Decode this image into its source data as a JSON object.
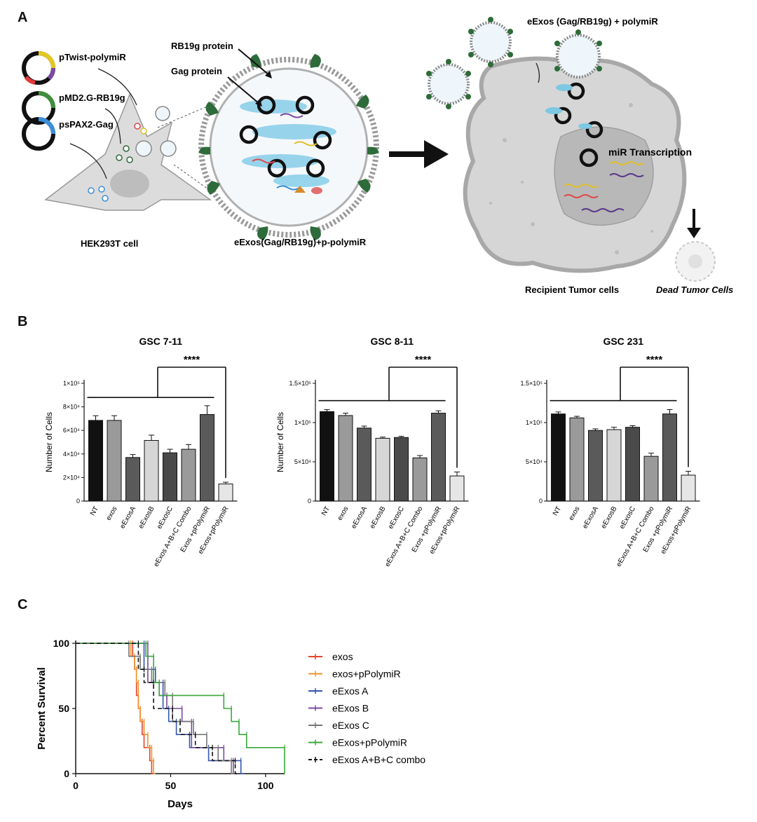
{
  "panels": {
    "a": "A",
    "b": "B",
    "c": "C"
  },
  "panelA": {
    "plasmids": [
      "pTwist-polymiR",
      "pMD2.G-RB19g",
      "psPAX2-Gag"
    ],
    "cell_label": "HEK293T cell",
    "rb19g_label": "RB19g protein",
    "gag_label": "Gag protein",
    "exo_label": "eExos(Gag/RB19g)+p-polymiR",
    "uptake_label": "eExos (Gag/RB19g) + polymiR",
    "transcription_label": "miR Transcription",
    "recipient_label": "Recipient Tumor cells",
    "dead_label": "Dead Tumor Cells",
    "colors": {
      "cell": "#dcdcdc",
      "tumor": "#cfcfcf",
      "nucleus": "#b5b5b5",
      "green": "#2e6b3a",
      "gag": "#7ec8e3"
    }
  },
  "chart_data": [
    {
      "type": "bar",
      "title": "GSC 7-11",
      "ylabel": "Number of Cells",
      "ylim": [
        0,
        100000
      ],
      "yticks": [
        0,
        20000,
        40000,
        60000,
        80000,
        100000
      ],
      "yticklabels": [
        "0",
        "2×10⁴",
        "4×10⁴",
        "6×10⁴",
        "8×10⁴",
        "1×10⁵"
      ],
      "categories": [
        "NT",
        "exos",
        "eExosA",
        "eExosB",
        "eExosC",
        "eExos A+B+C Combo",
        "Exos +pPolymiR",
        "eExos+pPolymiR"
      ],
      "values": [
        68500,
        68500,
        37000,
        51500,
        41000,
        44000,
        73500,
        14500
      ],
      "errors": [
        4000,
        4000,
        2500,
        4500,
        3000,
        4000,
        7500,
        1500
      ],
      "significance": "****"
    },
    {
      "type": "bar",
      "title": "GSC 8-11",
      "ylabel": "Number of Cells",
      "ylim": [
        0,
        150000
      ],
      "yticks": [
        0,
        50000,
        100000,
        150000
      ],
      "yticklabels": [
        "0",
        "5×10⁴",
        "1×10⁵",
        "1.5×10⁵"
      ],
      "categories": [
        "NT",
        "exos",
        "eExosA",
        "eExosB",
        "eExosC",
        "eExos A+B+C Combo",
        "Exos +pPolymiR",
        "eExos+pPolymiR"
      ],
      "values": [
        114000,
        109000,
        93000,
        80000,
        81000,
        55000,
        112000,
        32000
      ],
      "errors": [
        2500,
        3000,
        2500,
        1500,
        1500,
        3000,
        3000,
        5000
      ],
      "significance": "****"
    },
    {
      "type": "bar",
      "title": "GSC 231",
      "ylabel": "",
      "ylim": [
        0,
        150000
      ],
      "yticks": [
        0,
        50000,
        100000,
        150000
      ],
      "yticklabels": [
        "0",
        "5×10⁴",
        "1×10⁵",
        "1.5×10⁵"
      ],
      "categories": [
        "NT",
        "exos",
        "eExosA",
        "eExosB",
        "eExosC",
        "eExos A+B+C Combo",
        "Exos +pPolymiR",
        "eExos+pPolymiR"
      ],
      "values": [
        111000,
        106000,
        90000,
        91000,
        94000,
        57000,
        111000,
        33000
      ],
      "errors": [
        2500,
        2000,
        2000,
        3000,
        2000,
        4000,
        5500,
        5000
      ],
      "significance": "****"
    },
    {
      "type": "line",
      "subtype": "kaplan-meier",
      "xlabel": "Days",
      "ylabel": "Percent Survival",
      "xlim": [
        0,
        110
      ],
      "ylim": [
        0,
        100
      ],
      "xticks": [
        0,
        50,
        100
      ],
      "yticks": [
        0,
        50,
        100
      ],
      "series": [
        {
          "name": "exos",
          "color": "#e8432b",
          "dash": false,
          "steps": [
            [
              0,
              100
            ],
            [
              30,
              100
            ],
            [
              30,
              90
            ],
            [
              31,
              90
            ],
            [
              31,
              80
            ],
            [
              32,
              80
            ],
            [
              32,
              60
            ],
            [
              33,
              60
            ],
            [
              33,
              50
            ],
            [
              34,
              50
            ],
            [
              34,
              40
            ],
            [
              35,
              40
            ],
            [
              35,
              30
            ],
            [
              36,
              30
            ],
            [
              36,
              20
            ],
            [
              39,
              20
            ],
            [
              39,
              10
            ],
            [
              40,
              10
            ],
            [
              40,
              0
            ],
            [
              41,
              0
            ]
          ]
        },
        {
          "name": "exos+pPolymiR",
          "color": "#f0952b",
          "dash": false,
          "steps": [
            [
              0,
              100
            ],
            [
              29,
              100
            ],
            [
              29,
              90
            ],
            [
              31,
              90
            ],
            [
              31,
              80
            ],
            [
              32,
              80
            ],
            [
              32,
              70
            ],
            [
              33,
              70
            ],
            [
              33,
              50
            ],
            [
              34,
              50
            ],
            [
              34,
              40
            ],
            [
              36,
              40
            ],
            [
              36,
              30
            ],
            [
              38,
              30
            ],
            [
              38,
              20
            ],
            [
              40,
              20
            ],
            [
              40,
              10
            ],
            [
              41,
              10
            ],
            [
              41,
              0
            ],
            [
              42,
              0
            ]
          ]
        },
        {
          "name": "eExos A",
          "color": "#3355b0",
          "dash": false,
          "steps": [
            [
              0,
              100
            ],
            [
              36,
              100
            ],
            [
              36,
              80
            ],
            [
              42,
              80
            ],
            [
              42,
              70
            ],
            [
              46,
              70
            ],
            [
              46,
              50
            ],
            [
              49,
              50
            ],
            [
              49,
              40
            ],
            [
              53,
              40
            ],
            [
              53,
              30
            ],
            [
              60,
              30
            ],
            [
              60,
              20
            ],
            [
              70,
              20
            ],
            [
              70,
              10
            ],
            [
              87,
              10
            ],
            [
              87,
              0
            ],
            [
              89,
              0
            ]
          ]
        },
        {
          "name": "eExos B",
          "color": "#7b4aa0",
          "dash": false,
          "steps": [
            [
              0,
              100
            ],
            [
              38,
              100
            ],
            [
              38,
              70
            ],
            [
              44,
              70
            ],
            [
              44,
              60
            ],
            [
              48,
              60
            ],
            [
              48,
              50
            ],
            [
              56,
              50
            ],
            [
              56,
              40
            ],
            [
              61,
              40
            ],
            [
              61,
              20
            ],
            [
              78,
              20
            ],
            [
              78,
              10
            ],
            [
              83,
              10
            ],
            [
              83,
              0
            ],
            [
              85,
              0
            ]
          ]
        },
        {
          "name": "eExos C",
          "color": "#777777",
          "dash": false,
          "steps": [
            [
              0,
              100
            ],
            [
              28,
              100
            ],
            [
              28,
              90
            ],
            [
              34,
              90
            ],
            [
              34,
              80
            ],
            [
              40,
              80
            ],
            [
              40,
              70
            ],
            [
              47,
              70
            ],
            [
              47,
              60
            ],
            [
              51,
              60
            ],
            [
              51,
              40
            ],
            [
              62,
              40
            ],
            [
              62,
              30
            ],
            [
              69,
              30
            ],
            [
              69,
              20
            ],
            [
              75,
              20
            ],
            [
              75,
              10
            ],
            [
              82,
              10
            ],
            [
              82,
              0
            ],
            [
              84,
              0
            ]
          ]
        },
        {
          "name": "eExos+pPolymiR",
          "color": "#39a83a",
          "dash": false,
          "steps": [
            [
              0,
              100
            ],
            [
              37,
              100
            ],
            [
              37,
              90
            ],
            [
              41,
              90
            ],
            [
              41,
              70
            ],
            [
              44,
              70
            ],
            [
              44,
              60
            ],
            [
              78,
              60
            ],
            [
              78,
              50
            ],
            [
              82,
              50
            ],
            [
              82,
              40
            ],
            [
              86,
              40
            ],
            [
              86,
              30
            ],
            [
              90,
              30
            ],
            [
              90,
              20
            ],
            [
              110,
              20
            ],
            [
              110,
              0
            ]
          ]
        },
        {
          "name": "eExos A+B+C combo",
          "color": "#111111",
          "dash": true,
          "steps": [
            [
              0,
              100
            ],
            [
              33,
              100
            ],
            [
              33,
              80
            ],
            [
              36,
              80
            ],
            [
              36,
              70
            ],
            [
              41,
              70
            ],
            [
              41,
              50
            ],
            [
              51,
              50
            ],
            [
              51,
              40
            ],
            [
              55,
              40
            ],
            [
              55,
              30
            ],
            [
              63,
              30
            ],
            [
              63,
              20
            ],
            [
              72,
              20
            ],
            [
              72,
              10
            ],
            [
              84,
              10
            ],
            [
              84,
              0
            ],
            [
              86,
              0
            ]
          ]
        }
      ]
    }
  ]
}
